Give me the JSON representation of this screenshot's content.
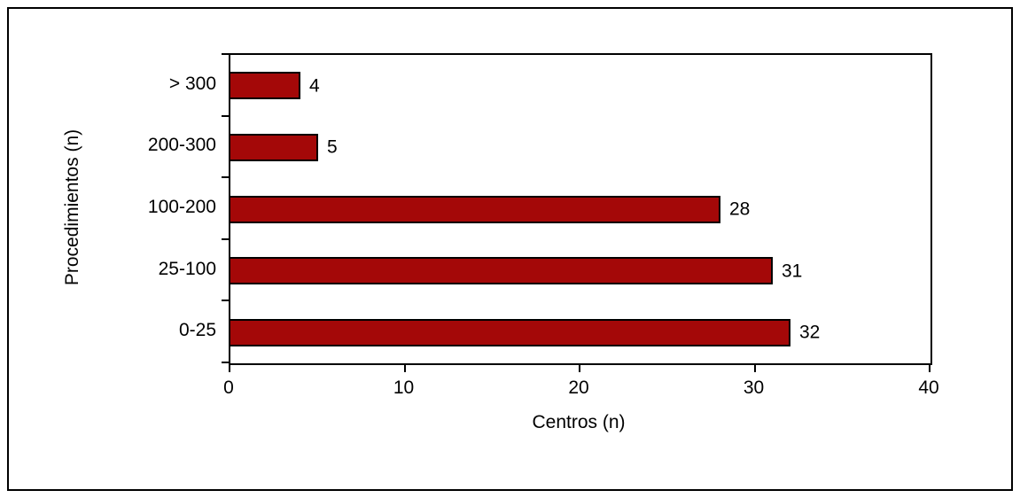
{
  "chart_data": {
    "type": "bar",
    "orientation": "horizontal",
    "title": "",
    "categories": [
      "> 300",
      "200-300",
      "100-200",
      "25-100",
      "0-25"
    ],
    "values": [
      4,
      5,
      28,
      31,
      32
    ],
    "data_labels": [
      "4",
      "5",
      "28",
      "31",
      "32"
    ],
    "xlabel": "Centros (n)",
    "ylabel": "Procedimientos (n)",
    "xlim": [
      0,
      40
    ],
    "xticks": [
      0,
      10,
      20,
      30,
      40
    ],
    "xtick_labels": [
      "0",
      "10",
      "20",
      "30",
      "40"
    ],
    "grid": "off",
    "legend": "none",
    "bar_color": "#a40808",
    "bar_border_color": "#000000",
    "axis_color": "#000000"
  }
}
